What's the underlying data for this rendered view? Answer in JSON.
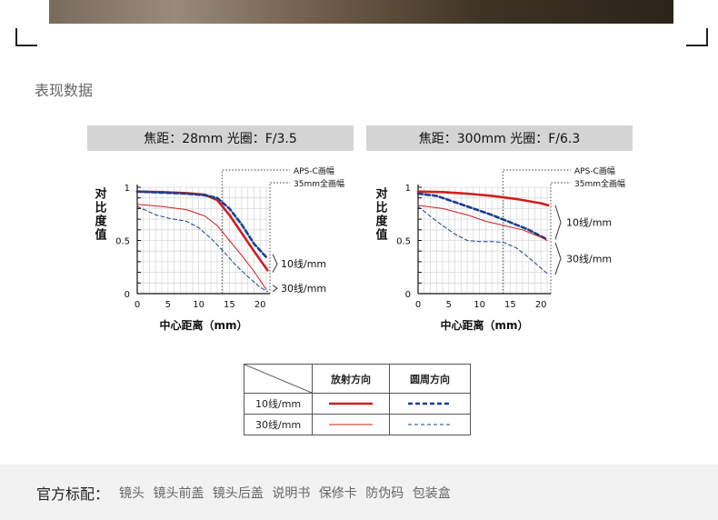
{
  "section_title": "表现数据",
  "charts": [
    {
      "header": "焦距：28mm 光圈：F/3.5"
    },
    {
      "header": "焦距：300mm 光圈：F/6.3"
    }
  ],
  "chart_data": [
    {
      "type": "line",
      "title": "焦距：28mm 光圈：F/3.5",
      "xlabel": "中心距离（mm）",
      "ylabel": "对比度值",
      "xlim": [
        0,
        21.6
      ],
      "ylim": [
        0,
        1
      ],
      "xticks": [
        "0",
        "5",
        "10",
        "15",
        "20"
      ],
      "yticks": [
        "0",
        "0.5",
        "1"
      ],
      "aps_c_limit": 13.8,
      "ff_limit": 21.6,
      "region_labels": [
        "APS-C画幅",
        "35mm全画幅"
      ],
      "brace_labels": [
        "10线/mm",
        "30线/mm"
      ],
      "series": [
        {
          "name": "10线/mm 放射方向",
          "x": [
            0,
            4,
            8,
            11,
            13,
            15,
            17,
            19,
            21.2
          ],
          "y": [
            0.96,
            0.955,
            0.945,
            0.93,
            0.88,
            0.74,
            0.57,
            0.4,
            0.22
          ]
        },
        {
          "name": "10线/mm 圆周方向",
          "x": [
            0,
            4,
            8,
            11,
            13,
            15,
            17,
            19,
            21.2
          ],
          "y": [
            0.96,
            0.95,
            0.94,
            0.925,
            0.9,
            0.8,
            0.65,
            0.47,
            0.33
          ]
        },
        {
          "name": "30线/mm 放射方向",
          "x": [
            0,
            4,
            8,
            11,
            13,
            15,
            17,
            19,
            21
          ],
          "y": [
            0.84,
            0.82,
            0.79,
            0.73,
            0.64,
            0.5,
            0.36,
            0.21,
            0.04
          ]
        },
        {
          "name": "30线/mm 圆周方向",
          "x": [
            0,
            3,
            5,
            8,
            10,
            12,
            14,
            16,
            18,
            20,
            21.2
          ],
          "y": [
            0.82,
            0.74,
            0.71,
            0.68,
            0.62,
            0.52,
            0.4,
            0.27,
            0.16,
            0.06,
            0.02
          ]
        }
      ]
    },
    {
      "type": "line",
      "title": "焦距：300mm 光圈：F/6.3",
      "xlabel": "中心距离（mm）",
      "ylabel": "对比度值",
      "xlim": [
        0,
        21.6
      ],
      "ylim": [
        0,
        1
      ],
      "xticks": [
        "0",
        "5",
        "10",
        "15",
        "20"
      ],
      "yticks": [
        "0",
        "0.5",
        "1"
      ],
      "aps_c_limit": 13.8,
      "ff_limit": 21.6,
      "region_labels": [
        "APS-C画幅",
        "35mm全画幅"
      ],
      "brace_labels": [
        "10线/mm",
        "30线/mm"
      ],
      "series": [
        {
          "name": "10线/mm 放射方向",
          "x": [
            0,
            4,
            8,
            12,
            16,
            20,
            21.2
          ],
          "y": [
            0.96,
            0.955,
            0.94,
            0.92,
            0.89,
            0.85,
            0.83
          ]
        },
        {
          "name": "10线/mm 圆周方向",
          "x": [
            0,
            3,
            6,
            9,
            12,
            15,
            18,
            21
          ],
          "y": [
            0.94,
            0.92,
            0.86,
            0.8,
            0.74,
            0.67,
            0.6,
            0.51
          ]
        },
        {
          "name": "30线/mm 放射方向",
          "x": [
            0,
            4,
            8,
            11,
            14,
            17,
            20,
            21
          ],
          "y": [
            0.83,
            0.8,
            0.74,
            0.68,
            0.64,
            0.6,
            0.53,
            0.5
          ]
        },
        {
          "name": "30线/mm 圆周方向",
          "x": [
            0,
            3,
            6,
            8,
            10,
            12,
            14,
            16,
            18,
            20,
            21.2
          ],
          "y": [
            0.82,
            0.68,
            0.56,
            0.5,
            0.49,
            0.49,
            0.48,
            0.43,
            0.34,
            0.24,
            0.18
          ]
        }
      ]
    }
  ],
  "legend": {
    "col_radial": "放射方向",
    "col_circumferential": "圆周方向",
    "row_10": "10线/mm",
    "row_30": "30线/mm"
  },
  "colors": {
    "radial": "#d01e1e",
    "circumferential": "#1a3f8f",
    "header_bg": "#d4d4d4",
    "footer_bg": "#f2f2f2"
  },
  "footer": {
    "label": "官方标配：",
    "items": [
      "镜头",
      "镜头前盖",
      "镜头后盖",
      "说明书",
      "保修卡",
      "防伪码",
      "包装盒"
    ]
  }
}
